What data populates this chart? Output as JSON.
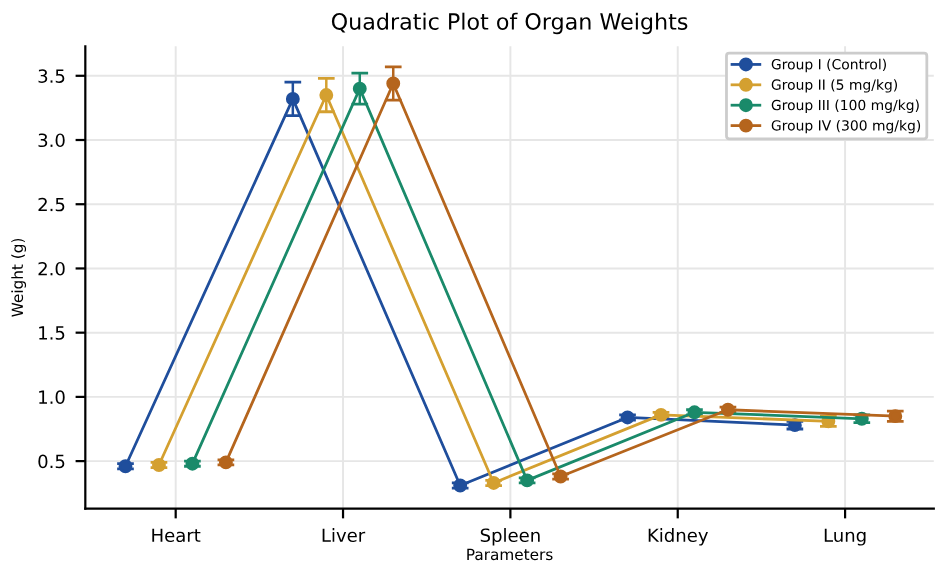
{
  "chart_data": {
    "type": "line",
    "title": "Quadratic Plot of Organ Weights",
    "xlabel": "Parameters",
    "ylabel": "Weight (g)",
    "categories": [
      "Heart",
      "Liver",
      "Spleen",
      "Kidney",
      "Lung"
    ],
    "series": [
      {
        "name": "Group I (Control)",
        "color": "#1f4e9c",
        "values": [
          0.46,
          3.32,
          0.31,
          0.84,
          0.78
        ],
        "errors": [
          0.02,
          0.13,
          0.02,
          0.02,
          0.03
        ]
      },
      {
        "name": "Group II (5 mg/kg)",
        "color": "#d4a030",
        "values": [
          0.47,
          3.35,
          0.33,
          0.86,
          0.81
        ],
        "errors": [
          0.02,
          0.13,
          0.02,
          0.02,
          0.04
        ]
      },
      {
        "name": "Group III (100 mg/kg)",
        "color": "#1a8a6a",
        "values": [
          0.48,
          3.4,
          0.35,
          0.88,
          0.83
        ],
        "errors": [
          0.02,
          0.12,
          0.02,
          0.02,
          0.03
        ]
      },
      {
        "name": "Group IV (300 mg/kg)",
        "color": "#b5651d",
        "values": [
          0.49,
          3.44,
          0.38,
          0.9,
          0.85
        ],
        "errors": [
          0.02,
          0.13,
          0.02,
          0.02,
          0.04
        ]
      }
    ],
    "ylim": [
      0.13,
      3.73
    ],
    "yticks": [
      {
        "value": 0.5,
        "label": "0.5"
      },
      {
        "value": 1.0,
        "label": "1.0"
      },
      {
        "value": 1.5,
        "label": "1.5"
      },
      {
        "value": 2.0,
        "label": "2.0"
      },
      {
        "value": 2.5,
        "label": "2.5"
      },
      {
        "value": 3.0,
        "label": "3.0"
      },
      {
        "value": 3.5,
        "label": "3.5"
      }
    ],
    "grid": true,
    "legend": "top right",
    "marker": "circle",
    "line_style": "solid"
  }
}
